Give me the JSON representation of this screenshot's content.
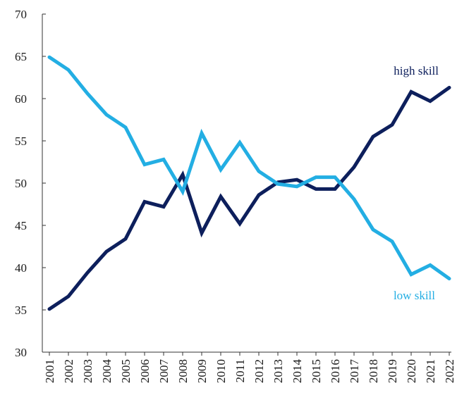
{
  "chart_data": {
    "type": "line",
    "x": [
      "2001",
      "2002",
      "2003",
      "2004",
      "2005",
      "2006",
      "2007",
      "2008",
      "2009",
      "2010",
      "2011",
      "2012",
      "2013",
      "2014",
      "2015",
      "2016",
      "2017",
      "2018",
      "2019",
      "2020",
      "2021",
      "2022"
    ],
    "ylim": [
      30,
      70
    ],
    "yticks": [
      30,
      35,
      40,
      45,
      50,
      55,
      60,
      65,
      70
    ],
    "grid": false,
    "series": [
      {
        "name": "high skill",
        "color": "#0d1f5c",
        "values": [
          35.1,
          36.6,
          39.4,
          41.9,
          43.4,
          47.8,
          47.2,
          51.0,
          44.1,
          48.4,
          45.2,
          48.6,
          50.1,
          50.4,
          49.3,
          49.3,
          51.9,
          55.5,
          56.9,
          60.8,
          59.7,
          61.3
        ]
      },
      {
        "name": "low skill",
        "color": "#23aee3",
        "values": [
          64.9,
          63.4,
          60.6,
          58.1,
          56.6,
          52.2,
          52.8,
          49.0,
          55.9,
          51.6,
          54.8,
          51.4,
          49.9,
          49.6,
          50.7,
          50.7,
          48.1,
          44.5,
          43.1,
          39.2,
          40.3,
          38.7
        ]
      }
    ]
  }
}
